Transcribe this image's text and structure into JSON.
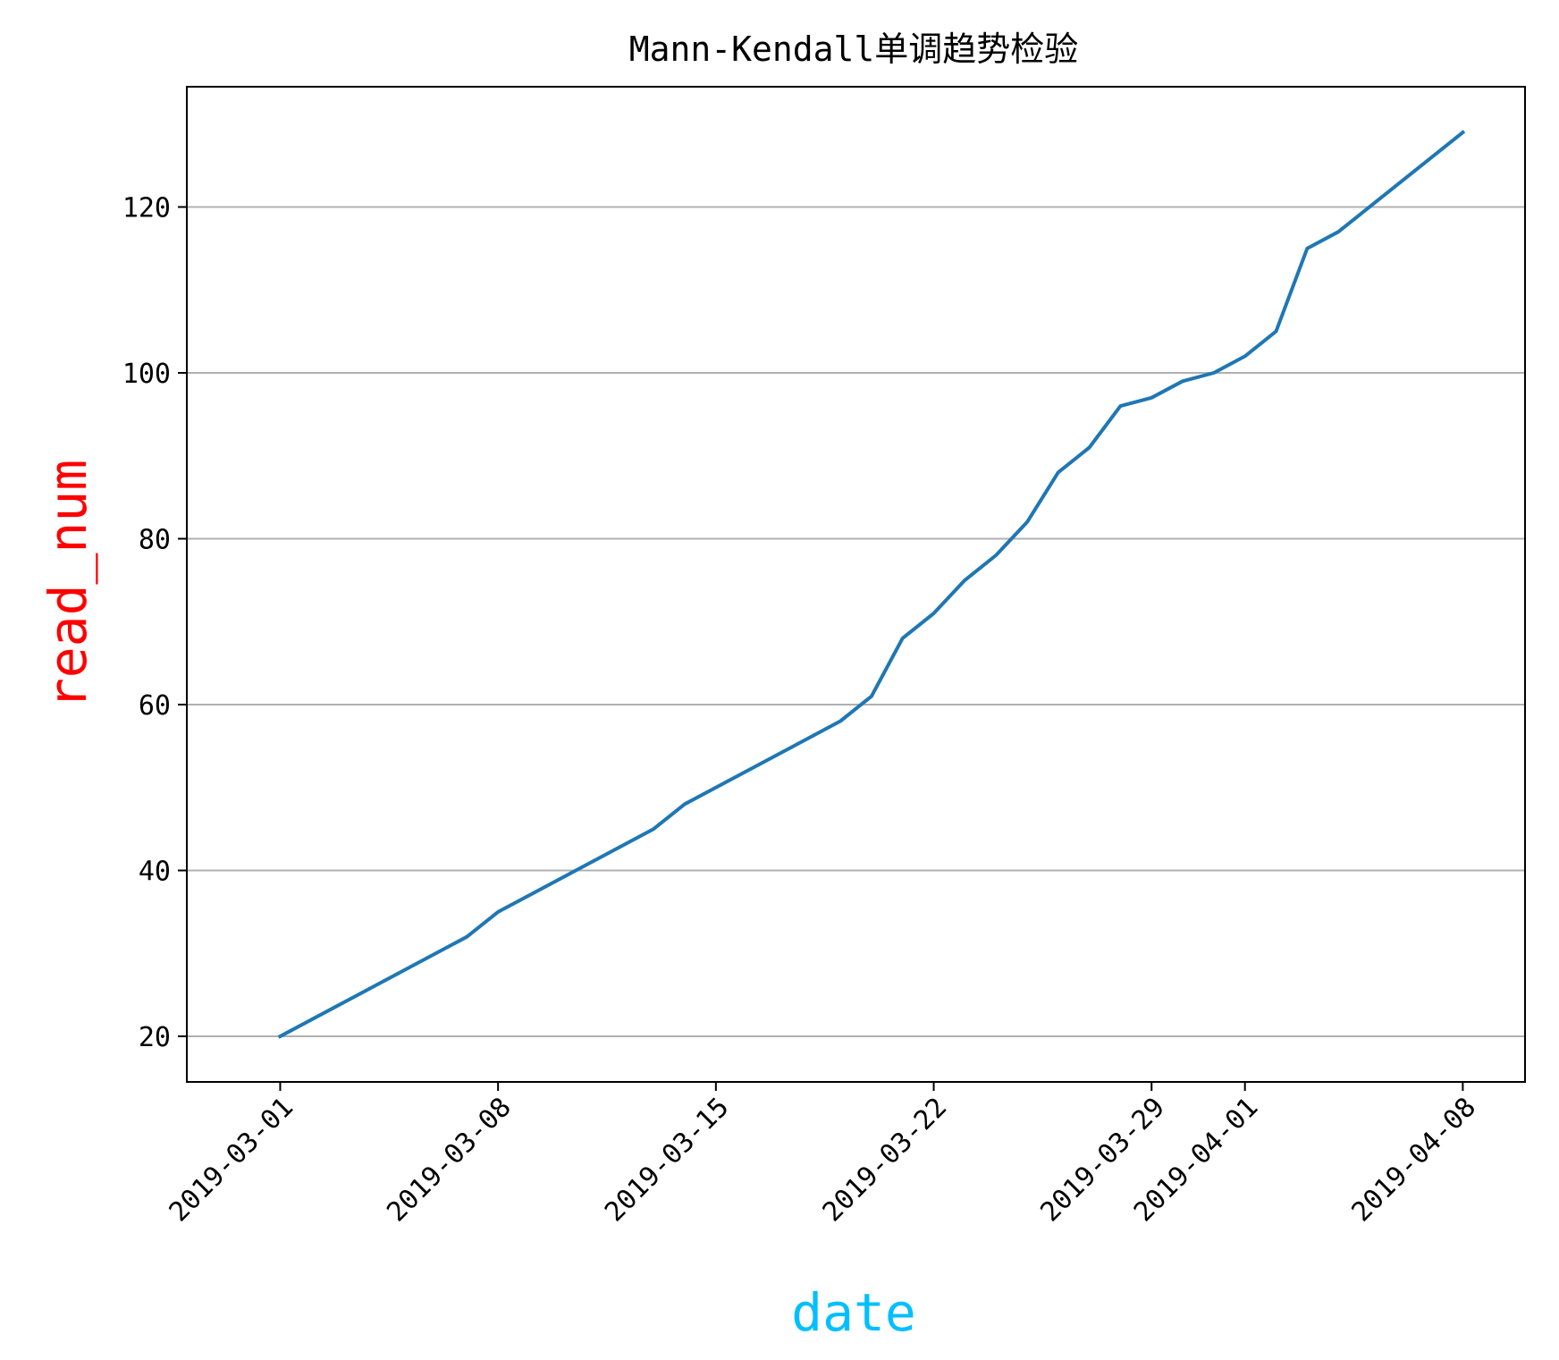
{
  "chart_data": {
    "type": "line",
    "title": "Mann-Kendall单调趋势检验",
    "xlabel": "date",
    "ylabel": "read_num",
    "xlabel_color": "#00bfff",
    "ylabel_color": "#ff0000",
    "line_color": "#1f77b4",
    "grid": "horizontal",
    "xlim": [
      "2019-02-26",
      "2019-04-10"
    ],
    "ylim": [
      14.5,
      134.5
    ],
    "x_ticks": [
      "2019-03-01",
      "2019-03-08",
      "2019-03-15",
      "2019-03-22",
      "2019-03-29",
      "2019-04-01",
      "2019-04-08"
    ],
    "y_ticks": [
      20,
      40,
      60,
      80,
      100,
      120
    ],
    "series": [
      {
        "x": [
          "2019-03-01",
          "2019-03-07",
          "2019-03-08",
          "2019-03-13",
          "2019-03-14",
          "2019-03-19",
          "2019-03-20",
          "2019-03-21",
          "2019-03-22",
          "2019-03-23",
          "2019-03-24",
          "2019-03-25",
          "2019-03-26",
          "2019-03-27",
          "2019-03-28",
          "2019-03-29",
          "2019-03-30",
          "2019-03-31",
          "2019-04-01",
          "2019-04-02",
          "2019-04-03",
          "2019-04-04",
          "2019-04-08"
        ],
        "y": [
          20,
          32,
          35,
          45,
          48,
          58,
          61,
          68,
          71,
          75,
          78,
          82,
          88,
          91,
          96,
          97,
          99,
          100,
          102,
          105,
          115,
          117,
          129
        ]
      }
    ]
  }
}
